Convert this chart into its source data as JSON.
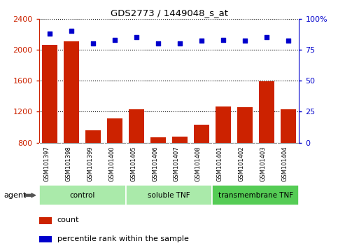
{
  "title": "GDS2773 / 1449048_s_at",
  "samples": [
    "GSM101397",
    "GSM101398",
    "GSM101399",
    "GSM101400",
    "GSM101405",
    "GSM101406",
    "GSM101407",
    "GSM101408",
    "GSM101401",
    "GSM101402",
    "GSM101403",
    "GSM101404"
  ],
  "counts": [
    2060,
    2110,
    960,
    1110,
    1230,
    870,
    880,
    1030,
    1270,
    1260,
    1590,
    1230
  ],
  "percentiles": [
    88,
    90,
    80,
    83,
    85,
    80,
    80,
    82,
    83,
    82,
    85,
    82
  ],
  "groups": [
    {
      "label": "control",
      "start": 0,
      "end": 4,
      "color": "#aaeaaa"
    },
    {
      "label": "soluble TNF",
      "start": 4,
      "end": 8,
      "color": "#aaeaaa"
    },
    {
      "label": "transmembrane TNF",
      "start": 8,
      "end": 12,
      "color": "#55cc55"
    }
  ],
  "ylim_left": [
    800,
    2400
  ],
  "ylim_right": [
    0,
    100
  ],
  "yticks_left": [
    800,
    1200,
    1600,
    2000,
    2400
  ],
  "yticks_right": [
    0,
    25,
    50,
    75,
    100
  ],
  "bar_color": "#cc2200",
  "scatter_color": "#0000cc",
  "grid_color": "#000000",
  "background_color": "#ffffff",
  "tick_area_color": "#cccccc",
  "legend_count_color": "#cc2200",
  "legend_pct_color": "#0000cc",
  "agent_arrow_color": "#555555"
}
